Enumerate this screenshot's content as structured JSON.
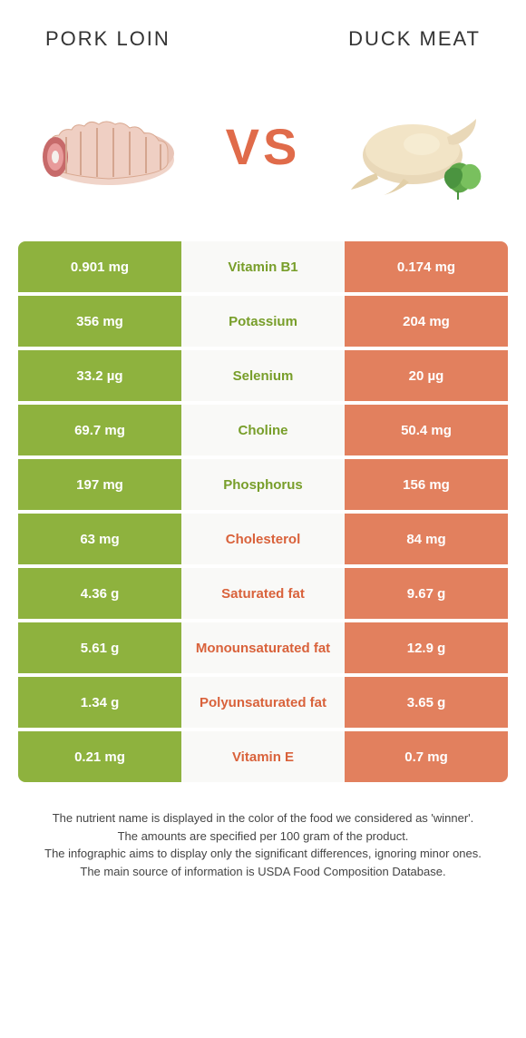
{
  "header": {
    "left_title": "Pork loin",
    "right_title": "Duck meat"
  },
  "vs_label": "VS",
  "colors": {
    "green_bg": "#8eb23e",
    "green_text": "#789e2a",
    "orange_bg": "#e2805e",
    "orange_text": "#d9623b",
    "white": "#ffffff",
    "center_bg": "#f9f9f7"
  },
  "rows": [
    {
      "nutrient": "Vitamin B1",
      "left": "0.901 mg",
      "right": "0.174 mg",
      "winner": "left"
    },
    {
      "nutrient": "Potassium",
      "left": "356 mg",
      "right": "204 mg",
      "winner": "left"
    },
    {
      "nutrient": "Selenium",
      "left": "33.2 µg",
      "right": "20 µg",
      "winner": "left"
    },
    {
      "nutrient": "Choline",
      "left": "69.7 mg",
      "right": "50.4 mg",
      "winner": "left"
    },
    {
      "nutrient": "Phosphorus",
      "left": "197 mg",
      "right": "156 mg",
      "winner": "left"
    },
    {
      "nutrient": "Cholesterol",
      "left": "63 mg",
      "right": "84 mg",
      "winner": "right"
    },
    {
      "nutrient": "Saturated fat",
      "left": "4.36 g",
      "right": "9.67 g",
      "winner": "right"
    },
    {
      "nutrient": "Monounsaturated fat",
      "left": "5.61 g",
      "right": "12.9 g",
      "winner": "right"
    },
    {
      "nutrient": "Polyunsaturated fat",
      "left": "1.34 g",
      "right": "3.65 g",
      "winner": "right"
    },
    {
      "nutrient": "Vitamin E",
      "left": "0.21 mg",
      "right": "0.7 mg",
      "winner": "right"
    }
  ],
  "footnotes": [
    "The nutrient name is displayed in the color of the food we considered as 'winner'.",
    "The amounts are specified per 100 gram of the product.",
    "The infographic aims to display only the significant differences, ignoring minor ones.",
    "The main source of information is USDA Food Composition Database."
  ]
}
